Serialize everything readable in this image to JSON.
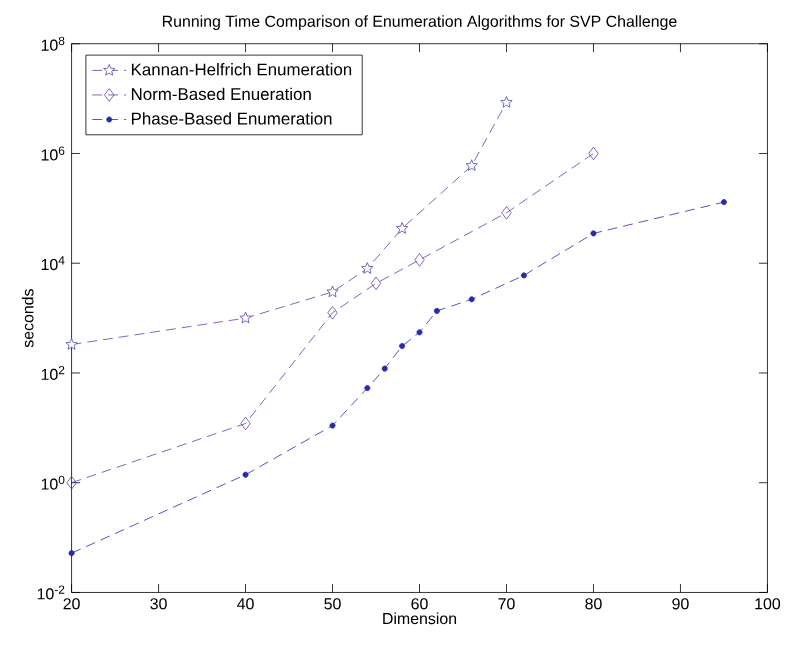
{
  "chart_data": {
    "type": "line",
    "title": "Running Time Comparison of Enumeration Algorithms for SVP Challenge",
    "xlabel": "Dimension",
    "ylabel": "seconds",
    "log": "y",
    "xlim": [
      20,
      100
    ],
    "xticks": [
      20,
      30,
      40,
      50,
      60,
      70,
      80,
      90,
      100
    ],
    "ylim": [
      0.01,
      100000000
    ],
    "yticks": [
      {
        "value": 0.01,
        "label": "10$^{-2}$"
      },
      {
        "value": 1,
        "label": "10$^{0}$"
      },
      {
        "value": 100,
        "label": "10$^{2}$"
      },
      {
        "value": 10000,
        "label": "10$^{4}$"
      },
      {
        "value": 1000000,
        "label": "10$^{6}$"
      },
      {
        "value": 100000000,
        "label": "10$^{8}$"
      }
    ],
    "grid": false,
    "legend": "top left",
    "line_style": "dashed",
    "series": [
      {
        "name": "Kannan-Helfrich Enumeration",
        "color": "#4a4aa8",
        "marker": "star",
        "x": [
          20,
          40,
          50,
          54,
          58,
          66,
          70
        ],
        "values": [
          330,
          1000,
          3000,
          8000,
          43000,
          600000,
          8500000
        ]
      },
      {
        "name": "Norm-Based Enueration",
        "color": "#4a4aa8",
        "marker": "diamond",
        "x": [
          20,
          40,
          50,
          55,
          60,
          70,
          80
        ],
        "values": [
          1,
          12,
          1250,
          4300,
          11500,
          83000,
          1000000
        ]
      },
      {
        "name": "Phase-Based Enumeration",
        "color": "#2a2ab0",
        "marker": "circle",
        "x": [
          20,
          40,
          50,
          54,
          56,
          58,
          60,
          62,
          66,
          72,
          80,
          95
        ],
        "values": [
          0.052,
          1.4,
          11,
          53,
          120,
          310,
          550,
          1350,
          2200,
          6000,
          35000,
          130000
        ]
      }
    ]
  }
}
